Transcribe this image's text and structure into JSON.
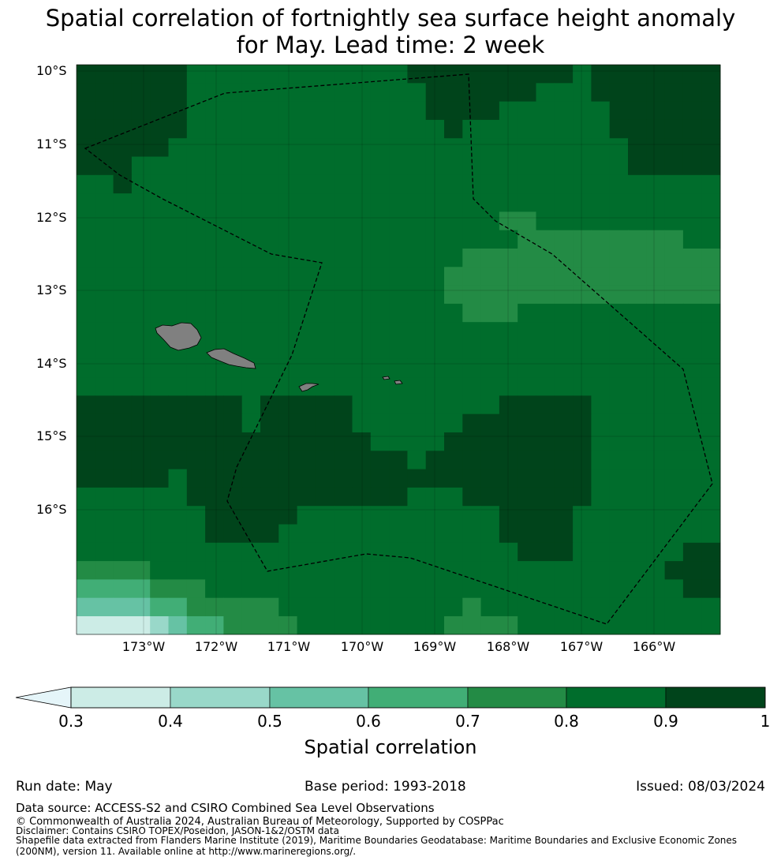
{
  "title": {
    "line1": "Spatial correlation of fortnightly sea surface height anomaly",
    "line2": "for May. Lead time: 2 week"
  },
  "map": {
    "lat_labels": [
      "10°S",
      "11°S",
      "12°S",
      "13°S",
      "14°S",
      "15°S",
      "16°S"
    ],
    "lon_labels": [
      "173°W",
      "172°W",
      "171°W",
      "170°W",
      "169°W",
      "168°W",
      "167°W",
      "166°W"
    ],
    "colors": {
      "c03": "#ccece6",
      "c04": "#99d8c9",
      "c05": "#66c2a4",
      "c06": "#41ae76",
      "c07": "#238b45",
      "c08": "#006d2c",
      "c09": "#00441b",
      "land": "#808080",
      "eez_line": "#000000"
    }
  },
  "colorbar": {
    "ticks": [
      "0.3",
      "0.4",
      "0.5",
      "0.6",
      "0.7",
      "0.8",
      "0.9",
      "1"
    ],
    "label": "Spatial correlation",
    "extend": "min",
    "extend_color": "#e5f5f9"
  },
  "footer": {
    "run_date": "Run date: May",
    "base_period": "Base period: 1993-2018",
    "issued": "Issued: 08/03/2024",
    "data_source": "Data source: ACCESS-S2 and CSIRO Combined Sea Level Observations",
    "copyright": "© Commonwealth of Australia 2024, Australian Bureau of Meteorology, Supported by COSPPac",
    "disclaimer": "Disclaimer: Contains CSIRO TOPEX/Poseidon, JASON-1&2/OSTM data",
    "shapefile_line1": "Shapefile data extracted from Flanders Marine Institute (2019), Maritime Boundaries Geodatabase: Maritime Boundaries and Exclusive Economic Zones",
    "shapefile_line2": "(200NM), version 11. Available online at http://www.marineregions.org/."
  }
}
